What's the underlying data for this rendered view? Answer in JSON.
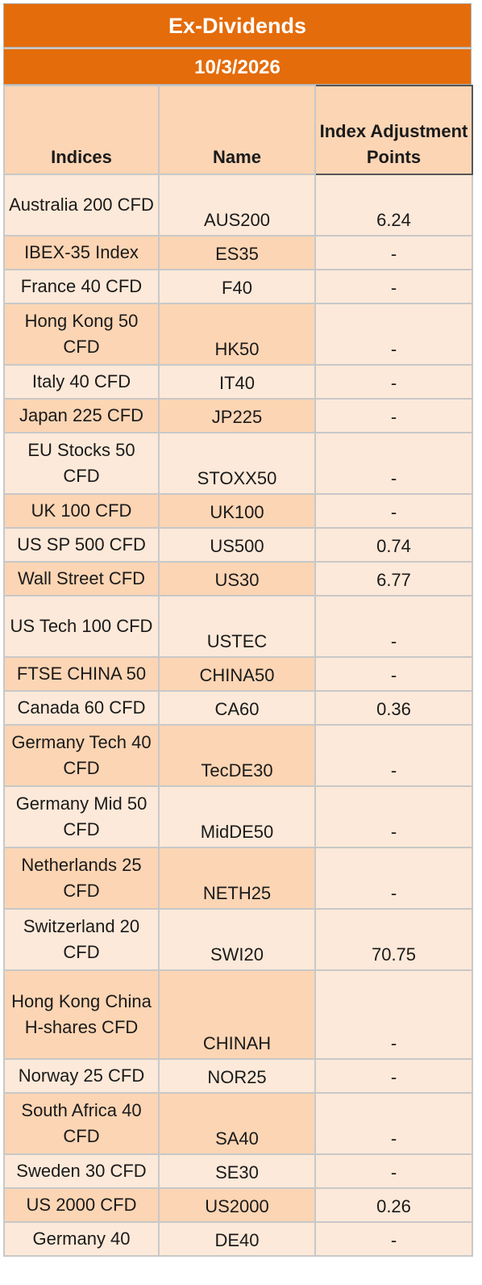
{
  "title": "Ex-Dividends",
  "date": "10/3/2026",
  "columns": [
    "Indices",
    "Name",
    "Index Adjustment Points"
  ],
  "rows": [
    {
      "index": "Australia 200 CFD",
      "name": "AUS200",
      "points": "6.24",
      "lines": 2,
      "shade": "light"
    },
    {
      "index": "IBEX-35 Index",
      "name": "ES35",
      "points": "-",
      "lines": 1,
      "shade": "dark"
    },
    {
      "index": "France 40 CFD",
      "name": "F40",
      "points": "-",
      "lines": 1,
      "shade": "light"
    },
    {
      "index": "Hong Kong 50 CFD",
      "name": "HK50",
      "points": "-",
      "lines": 2,
      "shade": "dark"
    },
    {
      "index": "Italy 40 CFD",
      "name": "IT40",
      "points": "-",
      "lines": 1,
      "shade": "light"
    },
    {
      "index": "Japan 225 CFD",
      "name": "JP225",
      "points": "-",
      "lines": 1,
      "shade": "dark"
    },
    {
      "index": "EU Stocks 50 CFD",
      "name": "STOXX50",
      "points": "-",
      "lines": 2,
      "shade": "light"
    },
    {
      "index": "UK 100 CFD",
      "name": "UK100",
      "points": "-",
      "lines": 1,
      "shade": "dark"
    },
    {
      "index": "US SP 500 CFD",
      "name": "US500",
      "points": "0.74",
      "lines": 1,
      "shade": "light"
    },
    {
      "index": "Wall Street CFD",
      "name": "US30",
      "points": "6.77",
      "lines": 1,
      "shade": "dark"
    },
    {
      "index": "US Tech 100 CFD",
      "name": "USTEC",
      "points": "-",
      "lines": 2,
      "shade": "light"
    },
    {
      "index": "FTSE CHINA 50",
      "name": "CHINA50",
      "points": "-",
      "lines": 1,
      "shade": "dark"
    },
    {
      "index": "Canada 60 CFD",
      "name": "CA60",
      "points": "0.36",
      "lines": 1,
      "shade": "light"
    },
    {
      "index": "Germany Tech 40 CFD",
      "name": "TecDE30",
      "points": "-",
      "lines": 2,
      "shade": "dark"
    },
    {
      "index": "Germany Mid 50 CFD",
      "name": "MidDE50",
      "points": "-",
      "lines": 2,
      "shade": "light"
    },
    {
      "index": "Netherlands 25 CFD",
      "name": "NETH25",
      "points": "-",
      "lines": 2,
      "shade": "dark"
    },
    {
      "index": "Switzerland 20 CFD",
      "name": "SWI20",
      "points": "70.75",
      "lines": 2,
      "shade": "light"
    },
    {
      "index": "Hong Kong China H-shares CFD",
      "name": "CHINAH",
      "points": "-",
      "lines": 3,
      "shade": "dark"
    },
    {
      "index": "Norway 25 CFD",
      "name": "NOR25",
      "points": "-",
      "lines": 1,
      "shade": "light"
    },
    {
      "index": "South Africa 40 CFD",
      "name": "SA40",
      "points": "-",
      "lines": 2,
      "shade": "dark"
    },
    {
      "index": "Sweden 30 CFD",
      "name": "SE30",
      "points": "-",
      "lines": 1,
      "shade": "light"
    },
    {
      "index": "US 2000 CFD",
      "name": "US2000",
      "points": "0.26",
      "lines": 1,
      "shade": "dark"
    },
    {
      "index": "Germany 40",
      "name": "DE40",
      "points": "-",
      "lines": 1,
      "shade": "light"
    }
  ],
  "colors": {
    "header_orange": "#e46c0a",
    "light_row": "#fde9d9",
    "dark_row": "#fcd5b4"
  }
}
